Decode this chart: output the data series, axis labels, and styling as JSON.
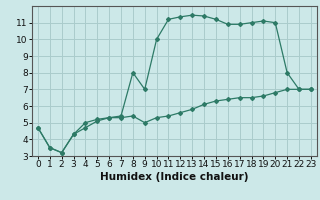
{
  "title": "",
  "xlabel": "Humidex (Indice chaleur)",
  "ylabel": "",
  "bg_color": "#cce8e8",
  "grid_color": "#aacccc",
  "line_color": "#2d7a66",
  "xlim": [
    -0.5,
    23.5
  ],
  "ylim": [
    3,
    12
  ],
  "yticks": [
    3,
    4,
    5,
    6,
    7,
    8,
    9,
    10,
    11
  ],
  "xticks": [
    0,
    1,
    2,
    3,
    4,
    5,
    6,
    7,
    8,
    9,
    10,
    11,
    12,
    13,
    14,
    15,
    16,
    17,
    18,
    19,
    20,
    21,
    22,
    23
  ],
  "line1_x": [
    0,
    1,
    2,
    3,
    4,
    5,
    6,
    7,
    8,
    9,
    10,
    11,
    12,
    13,
    14,
    15,
    16,
    17,
    18,
    19,
    20,
    21,
    22,
    23
  ],
  "line1_y": [
    4.7,
    3.5,
    3.2,
    4.3,
    4.7,
    5.1,
    5.3,
    5.3,
    5.4,
    5.0,
    5.3,
    5.4,
    5.6,
    5.8,
    6.1,
    6.3,
    6.4,
    6.5,
    6.5,
    6.6,
    6.8,
    7.0,
    7.0,
    7.0
  ],
  "line2_x": [
    0,
    1,
    2,
    3,
    4,
    5,
    6,
    7,
    8,
    9,
    10,
    11,
    12,
    13,
    14,
    15,
    16,
    17,
    18,
    19,
    20,
    21,
    22,
    23
  ],
  "line2_y": [
    4.7,
    3.5,
    3.2,
    4.3,
    5.0,
    5.2,
    5.3,
    5.4,
    8.0,
    7.0,
    10.0,
    11.2,
    11.35,
    11.45,
    11.4,
    11.2,
    10.9,
    10.9,
    11.0,
    11.1,
    11.0,
    8.0,
    7.0,
    7.0
  ],
  "tick_fontsize": 6.5,
  "xlabel_fontsize": 7.5
}
